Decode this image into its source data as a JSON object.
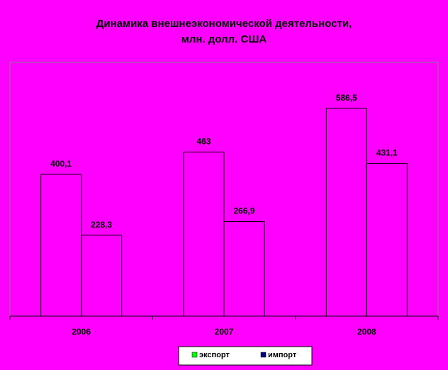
{
  "chart_data": {
    "type": "bar",
    "title_lines": [
      "Динамика внешнеэкономической деятельности,",
      "млн. долл. США"
    ],
    "categories": [
      "2006",
      "2007",
      "2008"
    ],
    "series": [
      {
        "name": "экспорт",
        "values": [
          400.1,
          463,
          586.5
        ],
        "labels": [
          "400,1",
          "463",
          "586,5"
        ],
        "color": "#00FF00"
      },
      {
        "name": "импорт",
        "values": [
          228.3,
          266.9,
          431.1
        ],
        "labels": [
          "228,3",
          "266,9",
          "431,1"
        ],
        "color": "#000080"
      }
    ],
    "ylim": [
      0,
      700
    ],
    "grid": false,
    "legend_position": "bottom"
  }
}
